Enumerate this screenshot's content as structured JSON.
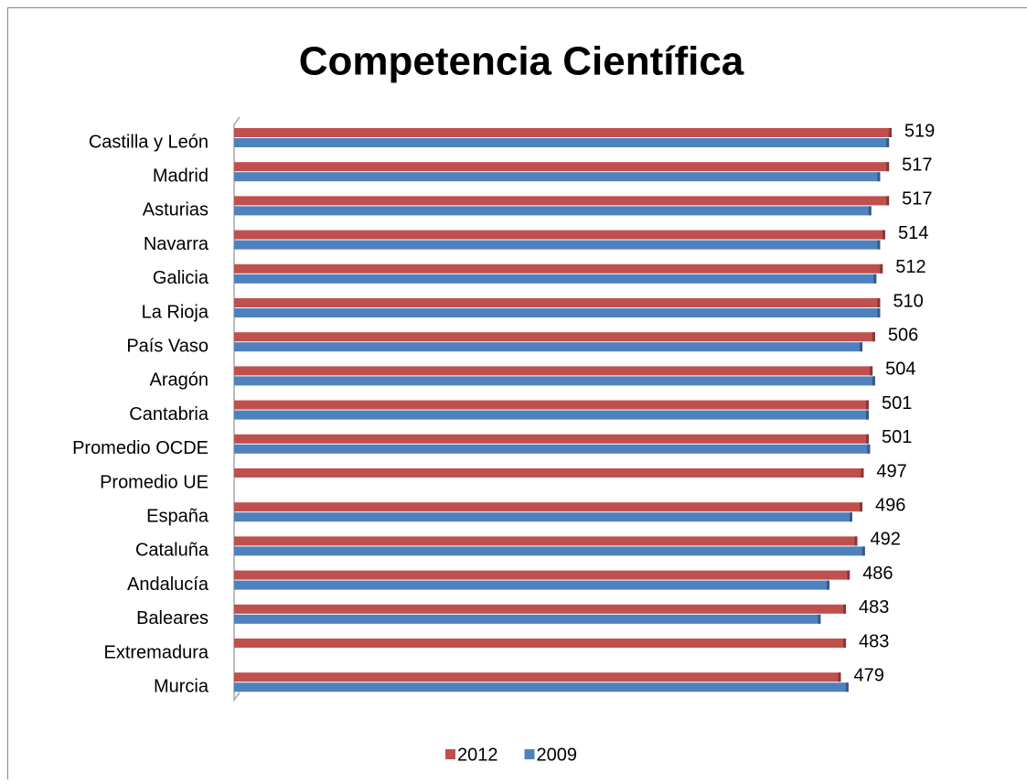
{
  "chart_data": {
    "type": "bar",
    "orientation": "horizontal",
    "title": "Competencia Científica",
    "categories": [
      "Castilla y León",
      "Madrid",
      "Asturias",
      "Navarra",
      "Galicia",
      "La Rioja",
      "País Vaso",
      "Aragón",
      "Cantabria",
      "Promedio OCDE",
      "Promedio UE",
      "España",
      "Cataluña",
      "Andalucía",
      "Baleares",
      "Extremadura",
      "Murcia"
    ],
    "series": [
      {
        "name": "2012",
        "color": "#c0504d",
        "values": [
          519,
          517,
          517,
          514,
          512,
          510,
          506,
          504,
          501,
          501,
          497,
          496,
          492,
          486,
          483,
          483,
          479
        ]
      },
      {
        "name": "2009",
        "color": "#4f81bd",
        "values": [
          517,
          510,
          503,
          510,
          507,
          510,
          496,
          506,
          501,
          502,
          null,
          488,
          498,
          470,
          463,
          null,
          485
        ]
      }
    ],
    "xlim": [
      0,
      540
    ],
    "legend": "bottom"
  }
}
